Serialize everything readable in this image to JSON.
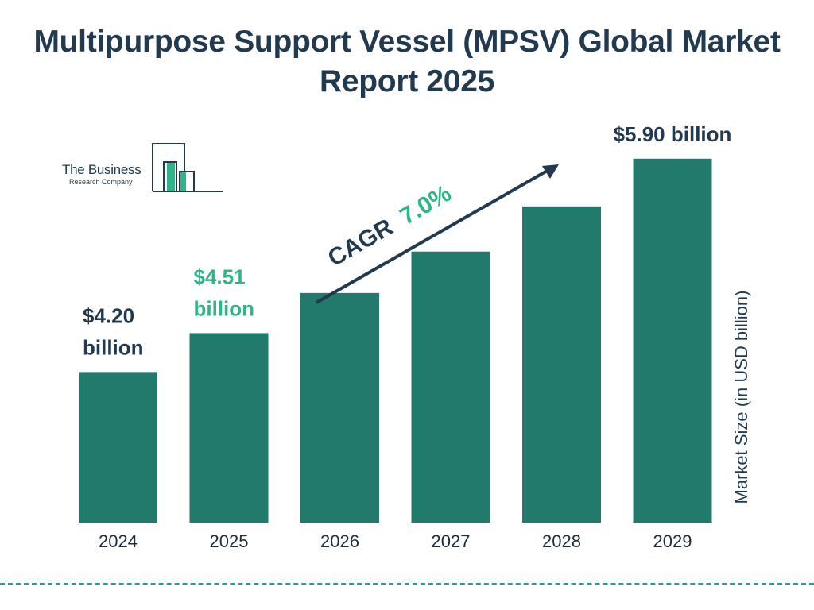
{
  "title": "Multipurpose Support Vessel (MPSV) Global Market Report 2025",
  "logo": {
    "line1": "The Business",
    "line2": "Research Company"
  },
  "colors": {
    "bar": "#217a6b",
    "dark": "#213a4f",
    "accent": "#2fb58a"
  },
  "chart_data": {
    "type": "bar",
    "title": "Multipurpose Support Vessel (MPSV) Global Market Report 2025",
    "categories": [
      "2024",
      "2025",
      "2026",
      "2027",
      "2028",
      "2029"
    ],
    "values": [
      4.2,
      4.51,
      4.83,
      5.16,
      5.52,
      5.9
    ],
    "xlabel": "",
    "ylabel": "Market Size (in USD billion)",
    "ylim": [
      3.0,
      6.0
    ],
    "grid": false,
    "legend": "none",
    "data_labels": [
      {
        "category": "2024",
        "lines": [
          "$4.20",
          "billion"
        ]
      },
      {
        "category": "2025",
        "lines": [
          "$4.51",
          "billion"
        ]
      },
      {
        "category": "2029",
        "lines": [
          "$5.90 billion"
        ]
      }
    ],
    "annotation": {
      "label": "CAGR",
      "value": "7.0%"
    }
  }
}
